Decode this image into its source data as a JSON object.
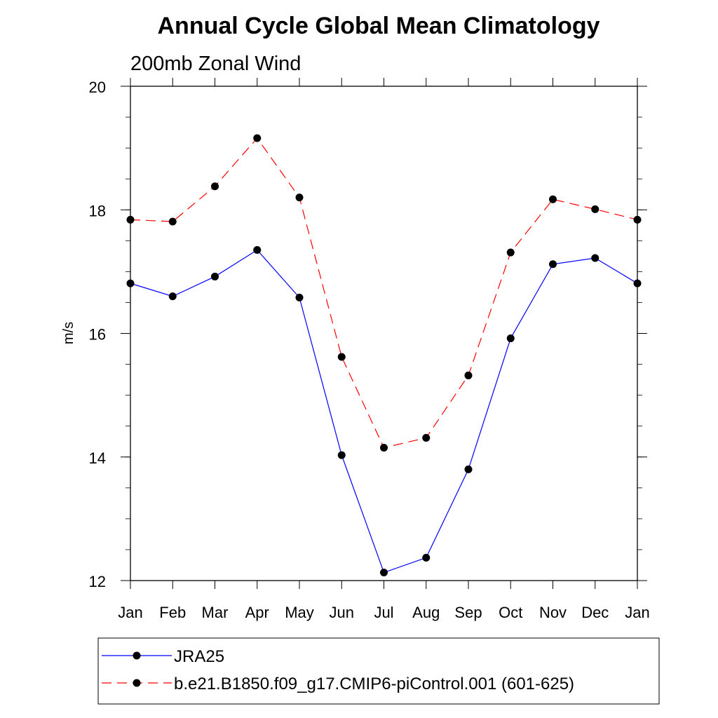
{
  "chart_data": {
    "type": "line",
    "title": "Annual Cycle Global Mean Climatology",
    "subtitle": "200mb Zonal Wind",
    "ylabel": "m/s",
    "xlabel": "",
    "categories": [
      "Jan",
      "Feb",
      "Mar",
      "Apr",
      "May",
      "Jun",
      "Jul",
      "Aug",
      "Sep",
      "Oct",
      "Nov",
      "Dec",
      "Jan"
    ],
    "ylim": [
      12,
      20
    ],
    "yticks": [
      12,
      14,
      16,
      18,
      20
    ],
    "ytick_labels": [
      "12",
      "14",
      "16",
      "18",
      "20"
    ],
    "y_minor_step": 0.5,
    "grid": false,
    "legend_position": "bottom",
    "series": [
      {
        "name": "JRA25",
        "color": "#0000ff",
        "line_style": "solid",
        "marker": "filled-circle",
        "values": [
          16.81,
          16.6,
          16.92,
          17.35,
          16.58,
          14.03,
          12.13,
          12.37,
          13.8,
          15.92,
          17.12,
          17.22,
          16.81
        ]
      },
      {
        "name": "b.e21.B1850.f09_g17.CMIP6-piControl.001 (601-625)",
        "color": "#ff0000",
        "line_style": "dashed",
        "marker": "filled-circle",
        "values": [
          17.84,
          17.81,
          18.38,
          19.16,
          18.2,
          15.62,
          14.15,
          14.31,
          15.32,
          17.31,
          18.17,
          18.01,
          17.84
        ]
      }
    ]
  }
}
